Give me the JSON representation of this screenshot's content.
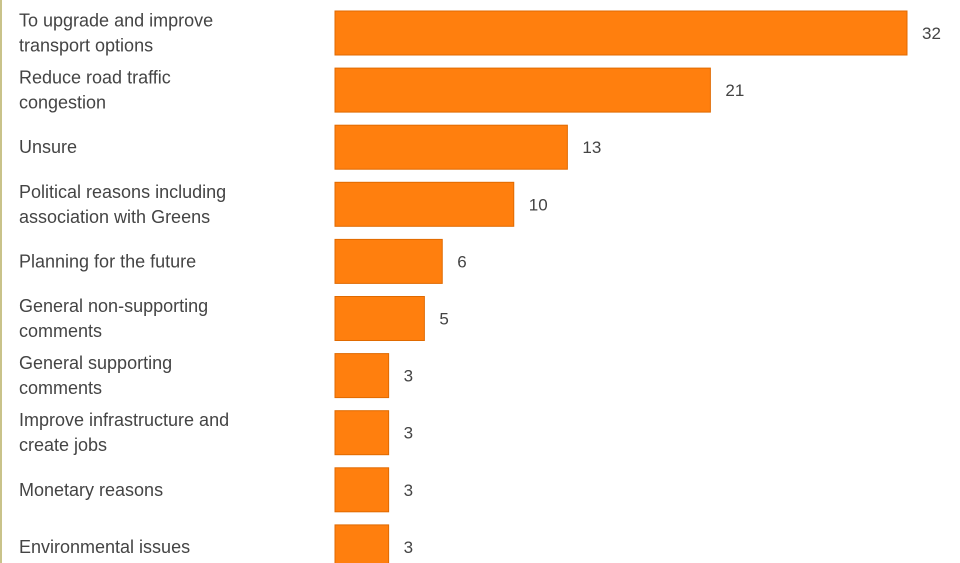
{
  "chart_data": {
    "type": "bar",
    "orientation": "horizontal",
    "title": "",
    "xlabel": "",
    "ylabel": "",
    "categories": [
      [
        "To upgrade and improve",
        "transport options"
      ],
      [
        "Reduce road traffic",
        "congestion"
      ],
      [
        "Unsure"
      ],
      [
        "Political reasons including",
        "association with Greens"
      ],
      [
        "Planning for the future"
      ],
      [
        "General non-supporting",
        "comments"
      ],
      [
        "General supporting",
        "comments"
      ],
      [
        "Improve infrastructure and",
        "create jobs"
      ],
      [
        "Monetary reasons"
      ],
      [
        "Environmental issues"
      ]
    ],
    "values": [
      32,
      21,
      13,
      10,
      6,
      5,
      3,
      3,
      3,
      3
    ],
    "xlim": [
      0,
      32
    ],
    "grid": false,
    "legend": "none",
    "colors": {
      "bar": "#ff7f0e",
      "bar_edge": "#e06a00",
      "text": "#444444"
    }
  }
}
